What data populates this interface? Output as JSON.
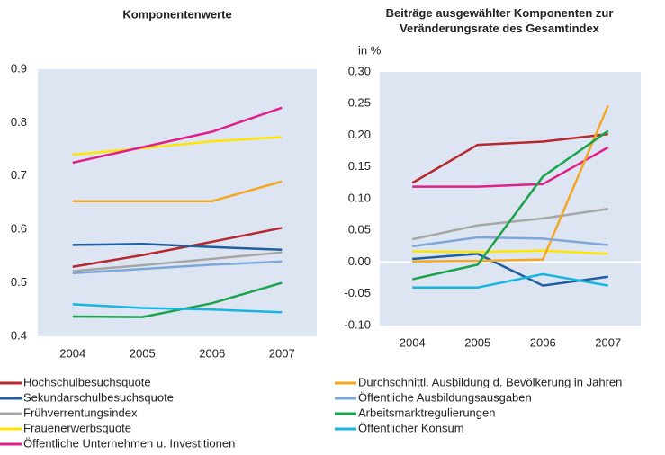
{
  "chart_data": [
    {
      "type": "line",
      "title": "Komponentenwerte",
      "categories": [
        "2004",
        "2005",
        "2006",
        "2007"
      ],
      "ylim": [
        0.4,
        0.9
      ],
      "yticks": [
        0.4,
        0.5,
        0.6,
        0.7,
        0.8,
        0.9
      ],
      "grid": false,
      "series": [
        {
          "name": "Hochschulbesuchsquote",
          "color": "#b5292e",
          "values": [
            0.53,
            0.552,
            0.577,
            0.603
          ]
        },
        {
          "name": "Sekundarschulbesuchsquote",
          "color": "#1f5fa0",
          "values": [
            0.571,
            0.573,
            0.567,
            0.562
          ]
        },
        {
          "name": "Frühverrentungsindex",
          "color": "#a6a6a6",
          "values": [
            0.522,
            0.533,
            0.545,
            0.557
          ]
        },
        {
          "name": "Frauenerwerbsquote",
          "color": "#ffe500",
          "values": [
            0.74,
            0.752,
            0.765,
            0.773
          ]
        },
        {
          "name": "Öffentliche Unternehmen u. Investitionen",
          "color": "#e0208a",
          "values": [
            0.725,
            0.754,
            0.783,
            0.828
          ]
        },
        {
          "name": "Durchschnittl. Ausbildung d. Bevölkerung in Jahren",
          "color": "#f5a623",
          "values": [
            0.653,
            0.653,
            0.653,
            0.69
          ]
        },
        {
          "name": "Öffentliche Ausbildungsausgaben",
          "color": "#7ea6d8",
          "values": [
            0.518,
            0.526,
            0.534,
            0.54
          ]
        },
        {
          "name": "Arbeitsmarktregulierungen",
          "color": "#1aa34a",
          "values": [
            0.437,
            0.436,
            0.462,
            0.5
          ]
        },
        {
          "name": "Öffentlicher Konsum",
          "color": "#19b5e0",
          "values": [
            0.46,
            0.453,
            0.45,
            0.445
          ]
        }
      ]
    },
    {
      "type": "line",
      "title": "Beiträge ausgewählter Komponenten zur Veränderungsrate des Gesamtindex",
      "y_label": "in %",
      "categories": [
        "2004",
        "2005",
        "2006",
        "2007"
      ],
      "ylim": [
        -0.1,
        0.3
      ],
      "yticks": [
        {
          "value": -0.1,
          "label": "-0.10"
        },
        {
          "value": -0.05,
          "label": "-0.05"
        },
        {
          "value": 0,
          "label": "0.00"
        },
        {
          "value": 0.05,
          "label": "0.05"
        },
        {
          "value": 0.1,
          "label": "0.10"
        },
        {
          "value": 0.15,
          "label": "0.15"
        },
        {
          "value": 0.2,
          "label": "0.20"
        },
        {
          "value": 0.25,
          "label": "0.25"
        },
        {
          "value": 0.3,
          "label": "0.30"
        }
      ],
      "grid": false,
      "zero_line": true,
      "series": [
        {
          "color": "#b5292e",
          "values": [
            0.125,
            0.185,
            0.19,
            0.202
          ]
        },
        {
          "color": "#1f5fa0",
          "values": [
            0.005,
            0.013,
            -0.037,
            -0.023
          ]
        },
        {
          "color": "#a6a6a6",
          "values": [
            0.036,
            0.058,
            0.069,
            0.084
          ]
        },
        {
          "color": "#ffe500",
          "values": [
            0.017,
            0.016,
            0.018,
            0.013
          ]
        },
        {
          "color": "#e0208a",
          "values": [
            0.119,
            0.119,
            0.123,
            0.181
          ]
        },
        {
          "color": "#f5a623",
          "values": [
            0.001,
            0.002,
            0.004,
            0.247
          ]
        },
        {
          "color": "#7ea6d8",
          "values": [
            0.025,
            0.039,
            0.037,
            0.027
          ]
        },
        {
          "color": "#1aa34a",
          "values": [
            -0.027,
            -0.004,
            0.135,
            0.207
          ]
        },
        {
          "color": "#19b5e0",
          "values": [
            -0.04,
            -0.04,
            -0.019,
            -0.037
          ]
        }
      ]
    }
  ]
}
